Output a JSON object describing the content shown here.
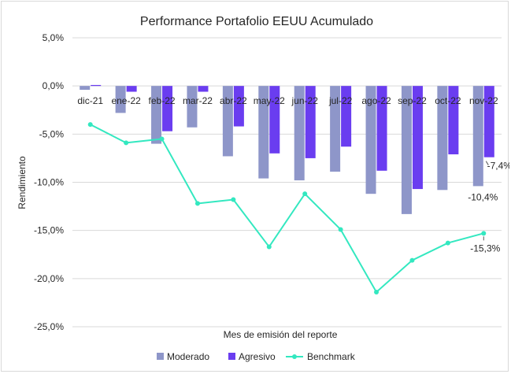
{
  "chart_data": {
    "type": "bar",
    "title": "Performance Portafolio EEUU Acumulado",
    "xlabel": "Mes de emisión del reporte",
    "ylabel": "Rendimiento",
    "ylim": [
      -25,
      5
    ],
    "yticks": [
      5,
      0,
      -5,
      -10,
      -15,
      -20,
      -25
    ],
    "ytick_labels": [
      "5,0%",
      "0,0%",
      "-5,0%",
      "-10,0%",
      "-15,0%",
      "-20,0%",
      "-25,0%"
    ],
    "grid": true,
    "legend_position": "bottom",
    "categories": [
      "dic-21",
      "ene-22",
      "feb-22",
      "mar-22",
      "abr-22",
      "may-22",
      "jun-22",
      "jul-22",
      "ago-22",
      "sep-22",
      "oct-22",
      "nov-22"
    ],
    "series": [
      {
        "name": "Moderado",
        "type": "bar",
        "color": "#8e96c9",
        "values": [
          -0.4,
          -2.8,
          -6.0,
          -4.3,
          -7.3,
          -9.6,
          -9.8,
          -8.9,
          -11.2,
          -13.3,
          -10.8,
          -10.4
        ]
      },
      {
        "name": "Agresivo",
        "type": "bar",
        "color": "#6a3df0",
        "values": [
          0.1,
          -0.6,
          -4.7,
          -0.6,
          -4.2,
          -7.0,
          -7.5,
          -6.3,
          -8.8,
          -10.7,
          -7.1,
          -7.4
        ]
      },
      {
        "name": "Benchmark",
        "type": "line",
        "color": "#33e8c0",
        "values": [
          -4.0,
          -5.9,
          -5.5,
          -12.2,
          -11.8,
          -16.7,
          -11.2,
          -14.9,
          -21.4,
          -18.1,
          -16.3,
          -15.3
        ]
      }
    ],
    "data_labels": [
      {
        "series": "Agresivo",
        "category": "nov-22",
        "text": "-7,4%"
      },
      {
        "series": "Moderado",
        "category": "nov-22",
        "text": "-10,4%"
      },
      {
        "series": "Benchmark",
        "category": "nov-22",
        "text": "-15,3%"
      }
    ]
  }
}
